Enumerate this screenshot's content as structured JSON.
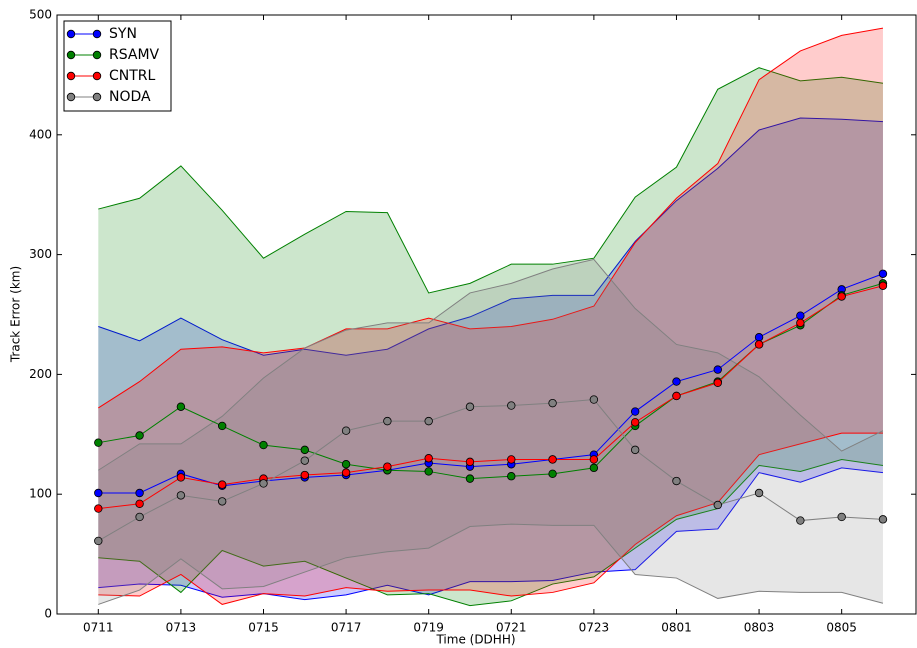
{
  "chart_data": {
    "type": "band-line",
    "xlabel": "Time (DDHH)",
    "ylabel": "Track Error (km)",
    "categories": [
      "0711",
      null,
      "0713",
      null,
      "0715",
      null,
      "0717",
      null,
      "0719",
      null,
      "0721",
      null,
      "0723",
      null,
      "0801",
      null,
      "0803",
      null,
      "0805",
      null
    ],
    "ylim": [
      0,
      500
    ],
    "yticks": [
      0,
      100,
      200,
      300,
      400,
      500
    ],
    "legend": "upper left",
    "series": [
      {
        "name": "SYN",
        "color": "#0000ff",
        "values": [
          101,
          101,
          117,
          107,
          111,
          114,
          116,
          120,
          126,
          123,
          125,
          129,
          133,
          169,
          194,
          204,
          231,
          249,
          271,
          284
        ],
        "upper": [
          240,
          228,
          247,
          229,
          216,
          221,
          216,
          221,
          238,
          248,
          263,
          266,
          266,
          311,
          345,
          372,
          404,
          414,
          413,
          411
        ],
        "lower": [
          22,
          25,
          24,
          14,
          17,
          12,
          16,
          24,
          16,
          27,
          27,
          28,
          35,
          37,
          69,
          71,
          118,
          110,
          122,
          118
        ]
      },
      {
        "name": "RSAMV",
        "color": "#008000",
        "values": [
          143,
          149,
          173,
          157,
          141,
          137,
          125,
          120,
          119,
          113,
          115,
          117,
          122,
          157,
          182,
          194,
          225,
          241,
          266,
          276
        ],
        "upper": [
          338,
          347,
          374,
          337,
          297,
          317,
          336,
          335,
          268,
          276,
          292,
          292,
          297,
          348,
          373,
          438,
          456,
          445,
          448,
          443
        ],
        "lower": [
          47,
          44,
          18,
          53,
          40,
          44,
          30,
          16,
          17,
          7,
          11,
          25,
          31,
          55,
          79,
          88,
          124,
          119,
          129,
          124
        ]
      },
      {
        "name": "CNTRL",
        "color": "#ff0000",
        "values": [
          88,
          92,
          114,
          108,
          113,
          116,
          118,
          123,
          130,
          127,
          129,
          129,
          129,
          160,
          182,
          193,
          225,
          243,
          265,
          274
        ],
        "upper": [
          172,
          194,
          221,
          223,
          218,
          222,
          238,
          238,
          247,
          238,
          240,
          246,
          257,
          310,
          347,
          376,
          446,
          470,
          483,
          489
        ],
        "lower": [
          16,
          15,
          33,
          8,
          17,
          15,
          22,
          19,
          20,
          20,
          15,
          18,
          26,
          58,
          82,
          93,
          133,
          142,
          151,
          151
        ]
      },
      {
        "name": "NODA",
        "color": "#808080",
        "values": [
          61,
          81,
          99,
          94,
          109,
          128,
          153,
          161,
          161,
          173,
          174,
          176,
          179,
          137,
          111,
          91,
          101,
          78,
          81,
          79
        ],
        "upper": [
          120,
          142,
          142,
          165,
          197,
          222,
          237,
          243,
          243,
          268,
          276,
          288,
          296,
          255,
          225,
          218,
          198,
          166,
          136,
          153
        ],
        "lower": [
          8,
          20,
          46,
          21,
          23,
          35,
          47,
          52,
          55,
          73,
          75,
          74,
          74,
          33,
          30,
          13,
          19,
          18,
          18,
          9
        ]
      }
    ]
  }
}
